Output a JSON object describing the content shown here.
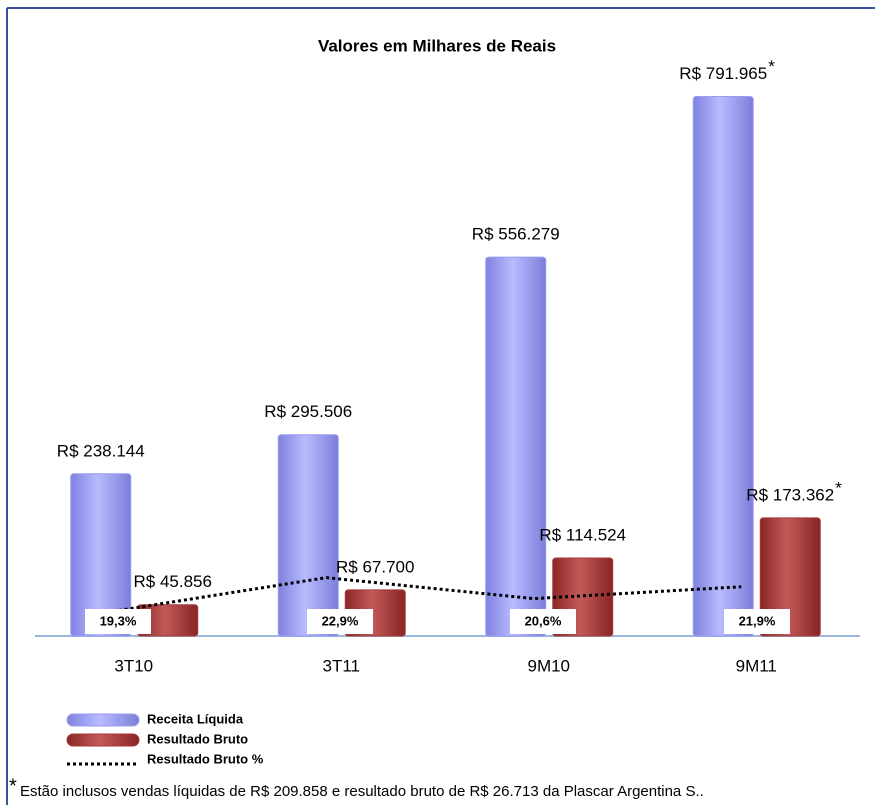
{
  "chart_data": {
    "type": "bar",
    "title": "Valores em Milhares de Reais",
    "categories": [
      "3T10",
      "3T11",
      "9M10",
      "9M11"
    ],
    "ylim": [
      0,
      850000
    ],
    "y2lim": [
      16.5,
      80
    ],
    "annotation_marker": "*",
    "annotated_categories": [
      3
    ],
    "series": [
      {
        "name": "Receita Líquida",
        "color": "#9a9cf2",
        "values": [
          238144,
          295506,
          556279,
          791965
        ],
        "value_labels": [
          "R$ 238.144",
          "R$ 295.506",
          "R$ 556.279",
          "R$ 791.965"
        ]
      },
      {
        "name": "Resultado Bruto",
        "color": "#a53a3a",
        "values": [
          45856,
          67700,
          114524,
          173362
        ],
        "value_labels": [
          "R$ 45.856",
          "R$ 67.700",
          "R$ 114.524",
          "R$ 173.362"
        ]
      },
      {
        "name": "Resultado Bruto %",
        "type": "line",
        "axis": "y2",
        "color": "#000000",
        "values": [
          19.3,
          22.9,
          20.6,
          21.9
        ],
        "value_labels": [
          "19,3%",
          "22,9%",
          "20,6%",
          "21,9%"
        ]
      }
    ],
    "footnote": "Estão inclusos vendas líquidas de R$ 209.858 e resultado bruto de R$ 26.713 da Plascar Argentina S.."
  }
}
